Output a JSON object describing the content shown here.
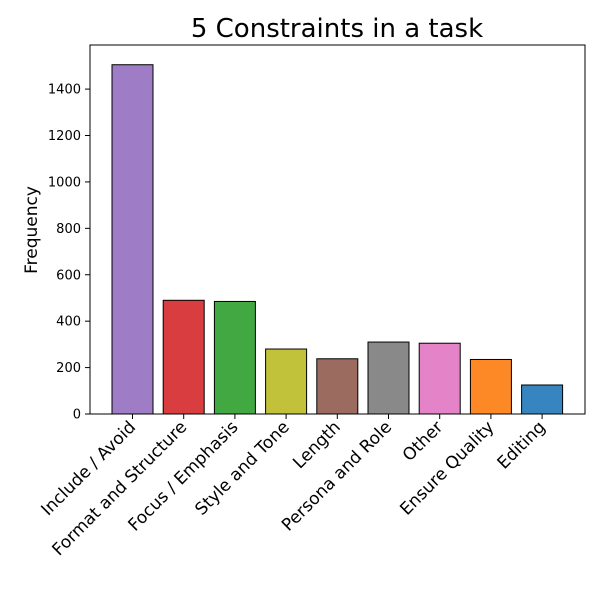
{
  "chart_data": {
    "type": "bar",
    "title": "5 Constraints in a task",
    "xlabel": "",
    "ylabel": "Frequency",
    "ylim": [
      0,
      1590
    ],
    "yticks": [
      0,
      200,
      400,
      600,
      800,
      1000,
      1200,
      1400
    ],
    "grid": false,
    "categories": [
      "Include / Avoid",
      "Format and Structure",
      "Focus / Emphasis",
      "Style and Tone",
      "Length",
      "Persona and Role",
      "Other",
      "Ensure Quality",
      "Editing"
    ],
    "values": [
      1505,
      490,
      485,
      280,
      238,
      310,
      305,
      235,
      125
    ],
    "colors": [
      "#9e7cc6",
      "#da3d3f",
      "#42a842",
      "#c1c13a",
      "#9a6b5e",
      "#898989",
      "#e583c8",
      "#fc8926",
      "#3785c0"
    ]
  }
}
